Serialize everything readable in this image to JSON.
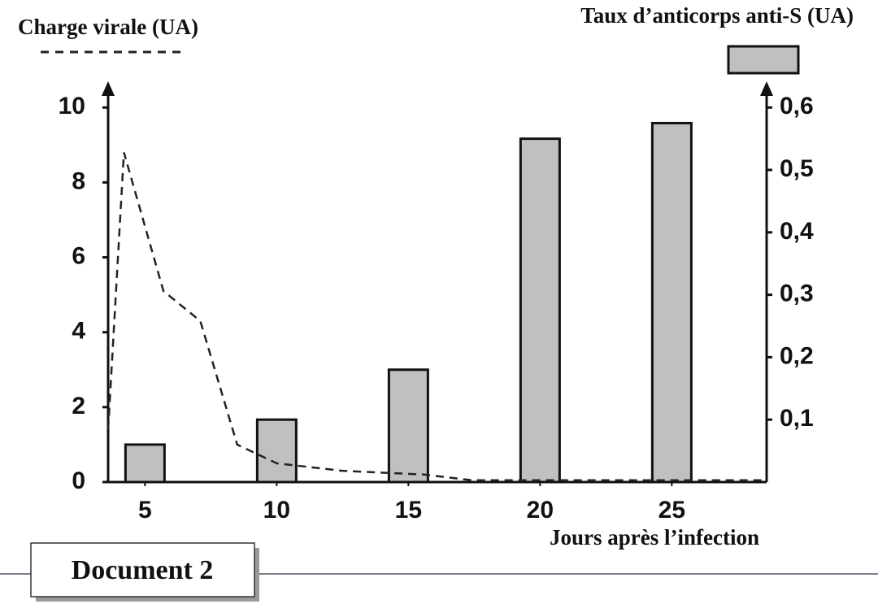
{
  "chart_data": {
    "type": "bar",
    "x_label": "Jours après l’infection",
    "xlim": [
      3.6,
      28.6
    ],
    "xticks": [
      5,
      10,
      15,
      20,
      25
    ],
    "ylim": [
      0,
      10.7
    ],
    "yticks": [
      0,
      2,
      4,
      6,
      8,
      10
    ],
    "y2lim": [
      0,
      0.642
    ],
    "y2ticks": [
      {
        "value": 0.1,
        "label": "0,1"
      },
      {
        "value": 0.2,
        "label": "0,2"
      },
      {
        "value": 0.3,
        "label": "0,3"
      },
      {
        "value": 0.4,
        "label": "0,4"
      },
      {
        "value": 0.5,
        "label": "0,5"
      },
      {
        "value": 0.6,
        "label": "0,6"
      }
    ],
    "series": [
      {
        "name": "Charge virale (UA)",
        "type": "line",
        "style": "dashed",
        "color": "#222222",
        "x": [
          3.6,
          4.2,
          5.7,
          7.1,
          8.5,
          10,
          12.5,
          15.6,
          17.4,
          28.6
        ],
        "values": [
          1.4,
          8.8,
          5.1,
          4.3,
          1.0,
          0.5,
          0.3,
          0.2,
          0.05,
          0.05
        ]
      },
      {
        "name": "Taux d’anticorps anti-S (UA)",
        "axis": "y2",
        "color": "#c0c0c0",
        "x": [
          5,
          10,
          15,
          20,
          25
        ],
        "values": [
          0.06,
          0.1,
          0.18,
          0.55,
          0.575
        ]
      }
    ]
  },
  "document_label": "Document 2"
}
